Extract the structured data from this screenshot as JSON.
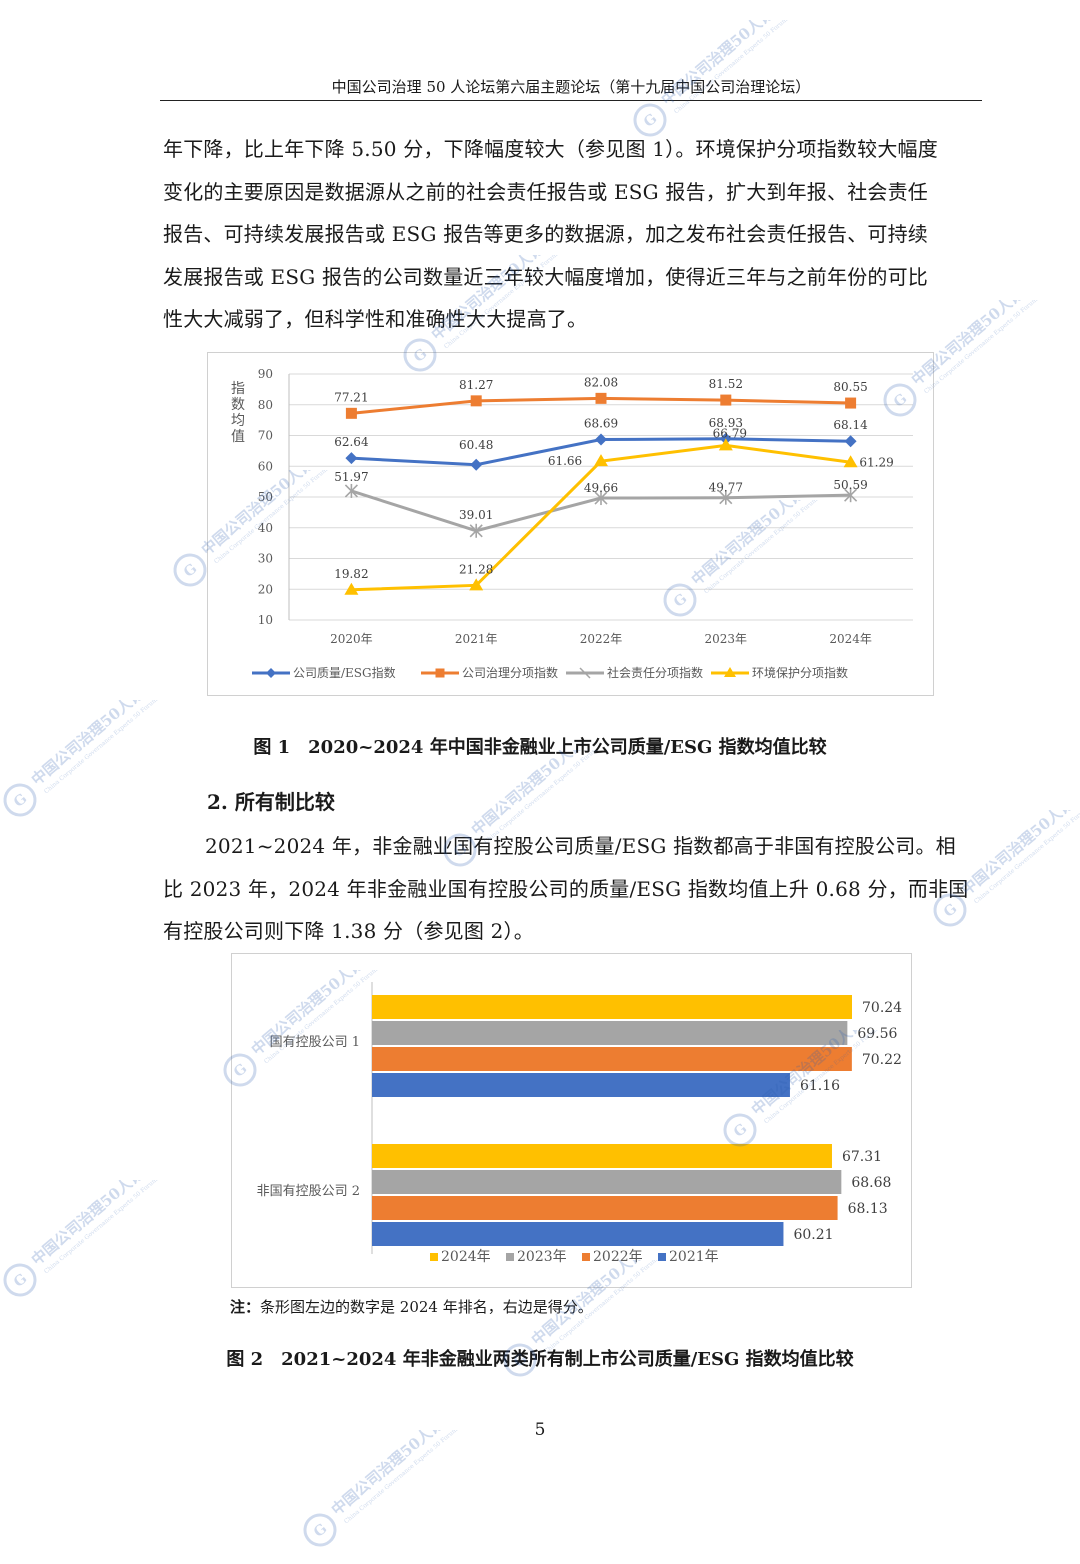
{
  "header": {
    "title": "中国公司治理 50 人论坛第六届主题论坛（第十九届中国公司治理论坛）"
  },
  "paragraph1": [
    "年下降，比上年下降 5.50 分，下降幅度较大（参见图 1）。环境保护分项指数较大幅度",
    "变化的主要原因是数据源从之前的社会责任报告或 ESG 报告，扩大到年报、社会责任",
    "报告、可持续发展报告或 ESG 报告等更多的数据源，加之发布社会责任报告、可持续",
    "发展报告或 ESG 报告的公司数量近三年较大幅度增加，使得近三年与之前年份的可比",
    "性大大减弱了，但科学性和准确性大大提高了。"
  ],
  "figure1": {
    "caption": "图 1　2020~2024 年中国非金融业上市公司质量/ESG 指数均值比较"
  },
  "section2": {
    "heading": "2. 所有制比较"
  },
  "paragraph2": [
    "2021~2024 年，非金融业国有控股公司质量/ESG 指数都高于非国有控股公司。相",
    "比 2023 年，2024 年非金融业国有控股公司的质量/ESG 指数均值上升 0.68 分，而非国",
    "有控股公司则下降 1.38 分（参见图 2）。"
  ],
  "figure2": {
    "note_label": "注：",
    "note_text": "条形图左边的数字是 2024 年排名，右边是得分。",
    "caption": "图 2　2021~2024 年非金融业两类所有制上市公司质量/ESG 指数均值比较"
  },
  "page_number": "5",
  "watermark_text": "中国公司治理50人论坛",
  "watermark_sub": "China Corporate Governance Experts 50 Forum",
  "chart_data": [
    {
      "type": "line",
      "ylabel": "指数均值",
      "ylim": [
        10,
        90
      ],
      "yticks": [
        10,
        20,
        30,
        40,
        50,
        60,
        70,
        80,
        90
      ],
      "categories": [
        "2020年",
        "2021年",
        "2022年",
        "2023年",
        "2024年"
      ],
      "grid": true,
      "legend": "bottom",
      "series": [
        {
          "name": "公司质量/ESG指数",
          "values": [
            62.64,
            60.48,
            68.69,
            68.93,
            68.14
          ],
          "color": "#4472C4",
          "marker": "diamond"
        },
        {
          "name": "公司治理分项指数",
          "values": [
            77.21,
            81.27,
            82.08,
            81.52,
            80.55
          ],
          "color": "#ED7D31",
          "marker": "square"
        },
        {
          "name": "社会责任分项指数",
          "values": [
            51.97,
            39.01,
            49.66,
            49.77,
            50.59
          ],
          "color": "#A5A5A5",
          "marker": "star"
        },
        {
          "name": "环境保护分项指数",
          "values": [
            19.82,
            21.28,
            61.66,
            66.79,
            61.29
          ],
          "color": "#FFC000",
          "marker": "triangle"
        }
      ]
    },
    {
      "type": "bar",
      "orientation": "horizontal",
      "categories": [
        "国有控股公司 1",
        "非国有控股公司 2"
      ],
      "legend": "bottom",
      "series": [
        {
          "name": "2024年",
          "values": [
            70.24,
            67.31
          ],
          "color": "#FFC000"
        },
        {
          "name": "2023年",
          "values": [
            69.56,
            68.68
          ],
          "color": "#A5A5A5"
        },
        {
          "name": "2022年",
          "values": [
            70.22,
            68.13
          ],
          "color": "#ED7D31"
        },
        {
          "name": "2021年",
          "values": [
            61.16,
            60.21
          ],
          "color": "#4472C4"
        }
      ]
    }
  ]
}
